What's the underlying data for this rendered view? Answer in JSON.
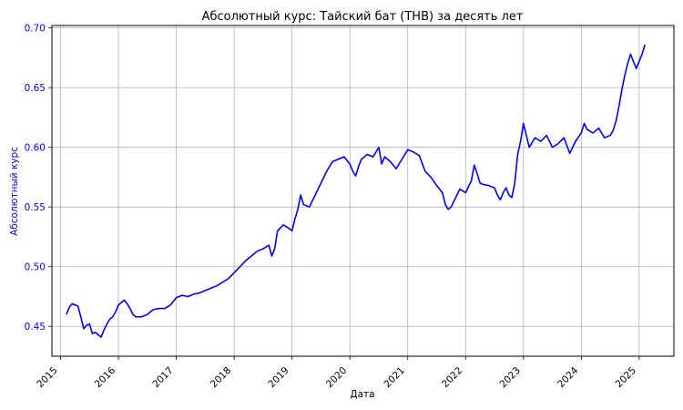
{
  "chart_data": {
    "type": "line",
    "title": "Абсолютный курс: Тайский бат (THB) за десять лет",
    "xlabel": "Дата",
    "ylabel": "Абсолютный курс",
    "xlim": [
      2014.85,
      2025.6
    ],
    "ylim": [
      0.425,
      0.702
    ],
    "x_ticks": [
      2015,
      2016,
      2017,
      2018,
      2019,
      2020,
      2021,
      2022,
      2023,
      2024,
      2025
    ],
    "x_tick_labels": [
      "2015",
      "2016",
      "2017",
      "2018",
      "2019",
      "2020",
      "2021",
      "2022",
      "2023",
      "2024",
      "2025"
    ],
    "y_ticks": [
      0.45,
      0.5,
      0.55,
      0.6,
      0.65,
      0.7
    ],
    "y_tick_labels": [
      "0.45",
      "0.50",
      "0.55",
      "0.60",
      "0.65",
      "0.70"
    ],
    "grid": true,
    "line_color": "#0000ff",
    "y_axis_color": "#0000ff",
    "series": [
      {
        "x": [
          2015.1,
          2015.15,
          2015.2,
          2015.25,
          2015.3,
          2015.35,
          2015.4,
          2015.45,
          2015.5,
          2015.55,
          2015.6,
          2015.65,
          2015.7,
          2015.75,
          2015.8,
          2015.85,
          2015.9,
          2015.95,
          2016.0,
          2016.05,
          2016.1,
          2016.15,
          2016.2,
          2016.25,
          2016.3,
          2016.4,
          2016.5,
          2016.6,
          2016.7,
          2016.8,
          2016.9,
          2017.0,
          2017.1,
          2017.2,
          2017.3,
          2017.4,
          2017.5,
          2017.6,
          2017.7,
          2017.8,
          2017.9,
          2018.0,
          2018.1,
          2018.2,
          2018.3,
          2018.4,
          2018.5,
          2018.6,
          2018.65,
          2018.7,
          2018.75,
          2018.85,
          2018.95,
          2019.0,
          2019.05,
          2019.1,
          2019.15,
          2019.2,
          2019.3,
          2019.4,
          2019.5,
          2019.6,
          2019.7,
          2019.8,
          2019.9,
          2020.0,
          2020.05,
          2020.1,
          2020.15,
          2020.2,
          2020.3,
          2020.4,
          2020.5,
          2020.55,
          2020.6,
          2020.7,
          2020.8,
          2020.9,
          2021.0,
          2021.1,
          2021.2,
          2021.3,
          2021.4,
          2021.5,
          2021.6,
          2021.65,
          2021.7,
          2021.75,
          2021.8,
          2021.85,
          2021.9,
          2022.0,
          2022.1,
          2022.15,
          2022.2,
          2022.25,
          2022.3,
          2022.4,
          2022.5,
          2022.55,
          2022.6,
          2022.65,
          2022.7,
          2022.75,
          2022.8,
          2022.85,
          2022.9,
          2022.95,
          2023.0,
          2023.05,
          2023.1,
          2023.2,
          2023.3,
          2023.4,
          2023.5,
          2023.6,
          2023.7,
          2023.8,
          2023.9,
          2024.0,
          2024.05,
          2024.1,
          2024.2,
          2024.3,
          2024.4,
          2024.5,
          2024.55,
          2024.6,
          2024.65,
          2024.7,
          2024.75,
          2024.8,
          2024.85,
          2024.9,
          2024.95,
          2025.0,
          2025.05,
          2025.1
        ],
        "y": [
          0.46,
          0.466,
          0.469,
          0.468,
          0.467,
          0.458,
          0.448,
          0.451,
          0.452,
          0.444,
          0.445,
          0.443,
          0.441,
          0.447,
          0.452,
          0.456,
          0.458,
          0.462,
          0.468,
          0.47,
          0.472,
          0.469,
          0.465,
          0.46,
          0.458,
          0.458,
          0.46,
          0.464,
          0.465,
          0.465,
          0.468,
          0.474,
          0.476,
          0.475,
          0.477,
          0.478,
          0.48,
          0.482,
          0.484,
          0.487,
          0.49,
          0.495,
          0.5,
          0.505,
          0.509,
          0.513,
          0.515,
          0.518,
          0.509,
          0.515,
          0.53,
          0.535,
          0.532,
          0.53,
          0.54,
          0.548,
          0.56,
          0.552,
          0.55,
          0.56,
          0.57,
          0.58,
          0.588,
          0.59,
          0.592,
          0.586,
          0.58,
          0.576,
          0.584,
          0.59,
          0.594,
          0.592,
          0.6,
          0.586,
          0.592,
          0.588,
          0.582,
          0.59,
          0.598,
          0.596,
          0.593,
          0.58,
          0.575,
          0.568,
          0.562,
          0.552,
          0.548,
          0.55,
          0.555,
          0.56,
          0.565,
          0.562,
          0.572,
          0.585,
          0.578,
          0.57,
          0.569,
          0.568,
          0.566,
          0.56,
          0.556,
          0.562,
          0.566,
          0.56,
          0.558,
          0.57,
          0.594,
          0.605,
          0.62,
          0.61,
          0.6,
          0.608,
          0.605,
          0.61,
          0.6,
          0.603,
          0.608,
          0.595,
          0.605,
          0.612,
          0.62,
          0.615,
          0.612,
          0.616,
          0.608,
          0.61,
          0.614,
          0.622,
          0.634,
          0.648,
          0.66,
          0.67,
          0.678,
          0.672,
          0.666,
          0.672,
          0.678,
          0.686
        ]
      }
    ]
  }
}
